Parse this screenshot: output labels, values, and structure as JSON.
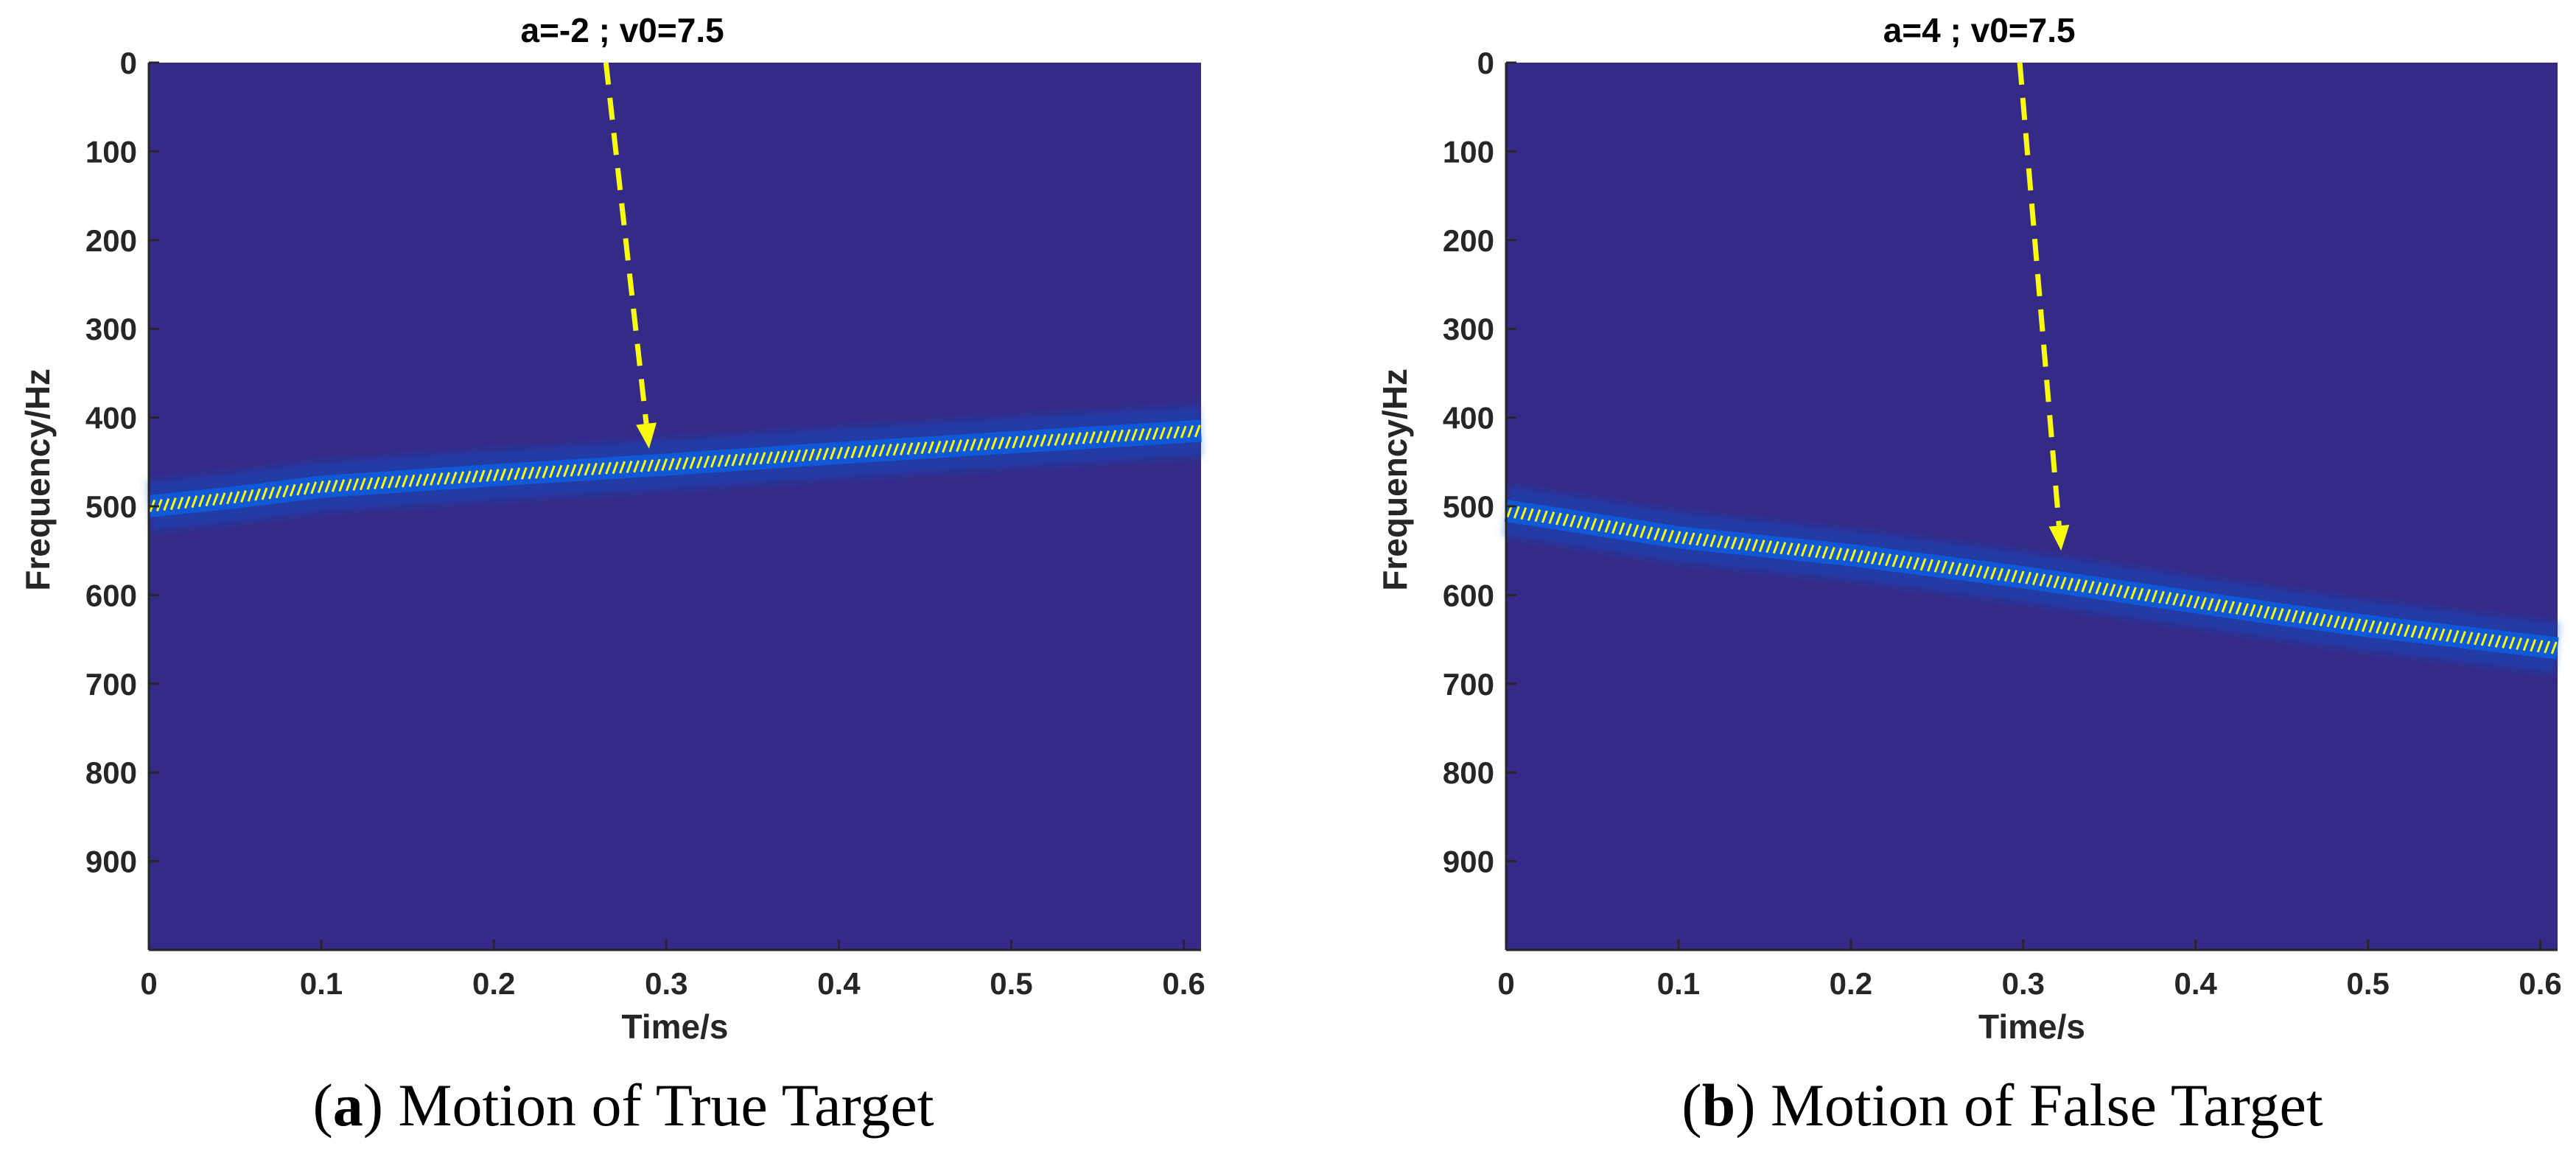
{
  "colors": {
    "background": "#352a87",
    "ridge": "#f9fb0e",
    "halo": "#0f5cdd",
    "arrow": "#f9fb0e",
    "axis": "#262626"
  },
  "panels": [
    {
      "caption_letter": "a",
      "caption_text": ") Motion of True Target",
      "caption_open": "("
    },
    {
      "caption_letter": "b",
      "caption_text": ") Motion of False Target",
      "caption_open": "("
    }
  ],
  "chart_data": [
    {
      "type": "heatmap",
      "title": "a=-2 ; v0=7.5",
      "xlabel": "Time/s",
      "ylabel": "Frequency/Hz",
      "xlim": [
        0,
        0.61
      ],
      "ylim": [
        1000,
        0
      ],
      "y_reversed": true,
      "xticks": [
        0,
        0.1,
        0.2,
        0.3,
        0.4,
        0.5,
        0.6
      ],
      "xtick_labels": [
        "0",
        "0.1",
        "0.2",
        "0.3",
        "0.4",
        "0.5",
        "0.6"
      ],
      "yticks": [
        0,
        100,
        200,
        300,
        400,
        500,
        600,
        700,
        800,
        900
      ],
      "ytick_labels": [
        "0",
        "100",
        "200",
        "300",
        "400",
        "500",
        "600",
        "700",
        "800",
        "900"
      ],
      "colormap": "parula",
      "ridge": {
        "time": [
          0,
          0.05,
          0.1,
          0.2,
          0.3,
          0.4,
          0.5,
          0.61
        ],
        "frequency": [
          500,
          490,
          478,
          465,
          453,
          440,
          428,
          415
        ]
      },
      "arrow": {
        "from": [
          0.265,
          0
        ],
        "to": [
          0.29,
          435
        ]
      }
    },
    {
      "type": "heatmap",
      "title": "a=4 ; v0=7.5",
      "xlabel": "Time/s",
      "ylabel": "Frequency/Hz",
      "xlim": [
        0,
        0.61
      ],
      "ylim": [
        1000,
        0
      ],
      "y_reversed": true,
      "xticks": [
        0,
        0.1,
        0.2,
        0.3,
        0.4,
        0.5,
        0.6
      ],
      "xtick_labels": [
        "0",
        "0.1",
        "0.2",
        "0.3",
        "0.4",
        "0.5",
        "0.6"
      ],
      "yticks": [
        0,
        100,
        200,
        300,
        400,
        500,
        600,
        700,
        800,
        900
      ],
      "ytick_labels": [
        "0",
        "100",
        "200",
        "300",
        "400",
        "500",
        "600",
        "700",
        "800",
        "900"
      ],
      "colormap": "parula",
      "ridge": {
        "time": [
          0,
          0.05,
          0.1,
          0.2,
          0.3,
          0.4,
          0.45,
          0.5,
          0.61
        ],
        "frequency": [
          505,
          520,
          535,
          555,
          580,
          608,
          622,
          635,
          660
        ]
      },
      "arrow": {
        "from": [
          0.298,
          0
        ],
        "to": [
          0.322,
          550
        ]
      }
    }
  ]
}
